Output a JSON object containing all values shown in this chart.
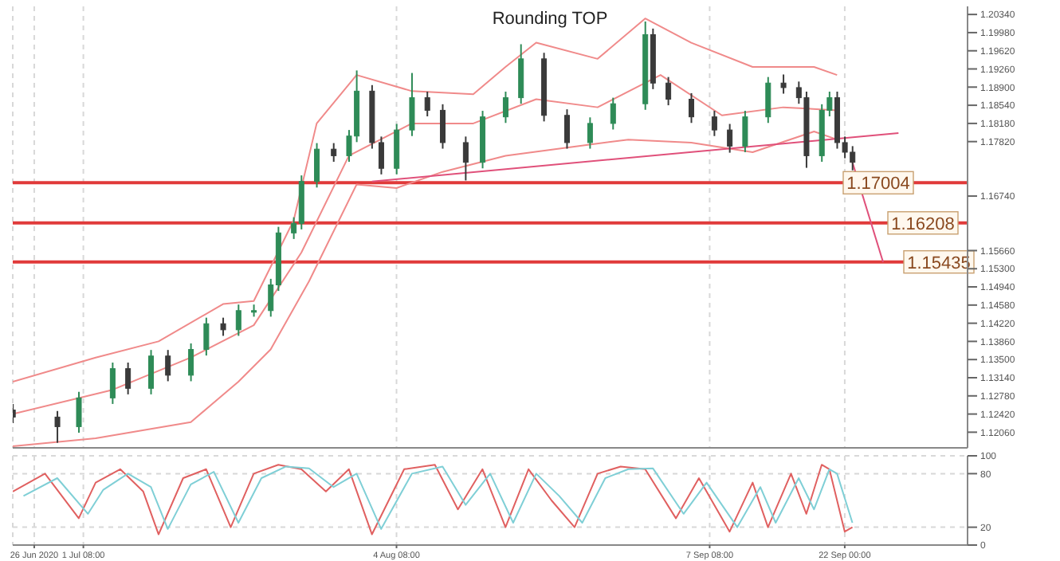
{
  "chart_data": [
    {
      "type": "candlestick",
      "title": "Rounding TOP",
      "x": [
        "2020-06-23T16:00",
        "2020-06-28T12:00",
        "2020-06-30T20:00",
        "2020-07-04T12:00",
        "2020-07-06T04:00",
        "2020-07-08T16:00",
        "2020-07-10T12:00",
        "2020-07-13T00:00",
        "2020-07-14T16:00",
        "2020-07-16T12:00",
        "2020-07-18T04:00",
        "2020-07-19T20:00",
        "2020-07-21T16:00",
        "2020-07-22T12:00",
        "2020-07-24T04:00",
        "2020-07-25T00:00",
        "2020-07-26T16:00",
        "2020-07-28T12:00",
        "2020-07-30T04:00",
        "2020-07-31T00:00",
        "2020-08-01T16:00",
        "2020-08-02T16:00",
        "2020-08-04T08:00",
        "2020-08-06T00:00",
        "2020-08-07T16:00",
        "2020-08-09T08:00",
        "2020-08-11T20:00",
        "2020-08-13T16:00",
        "2020-08-16T04:00",
        "2020-08-17T20:00",
        "2020-08-20T08:00",
        "2020-08-22T20:00",
        "2020-08-25T08:00",
        "2020-08-27T20:00",
        "2020-08-31T08:00",
        "2020-09-01T04:00",
        "2020-09-02T20:00",
        "2020-09-05T08:00",
        "2020-09-07T20:00",
        "2020-09-09T12:00",
        "2020-09-11T04:00",
        "2020-09-13T16:00",
        "2020-09-15T08:00",
        "2020-09-17T00:00",
        "2020-09-17T20:00",
        "2020-09-19T12:00",
        "2020-09-20T08:00",
        "2020-09-21T04:00",
        "2020-09-22T00:00",
        "2020-09-22T20:00"
      ],
      "ohlc": [
        [
          1.125,
          1.1262,
          1.1224,
          1.1236
        ],
        [
          1.1236,
          1.1248,
          1.1185,
          1.1217
        ],
        [
          1.1217,
          1.1286,
          1.1205,
          1.1274
        ],
        [
          1.1274,
          1.1344,
          1.1262,
          1.1332
        ],
        [
          1.1332,
          1.1344,
          1.1281,
          1.1293
        ],
        [
          1.1293,
          1.1369,
          1.1281,
          1.1357
        ],
        [
          1.1357,
          1.1369,
          1.1307,
          1.1319
        ],
        [
          1.1319,
          1.1382,
          1.1307,
          1.137
        ],
        [
          1.137,
          1.1433,
          1.1358,
          1.1421
        ],
        [
          1.1421,
          1.1433,
          1.1397,
          1.1409
        ],
        [
          1.1409,
          1.1459,
          1.1397,
          1.1447
        ],
        [
          1.1447,
          1.1459,
          1.1435,
          1.1447
        ],
        [
          1.1447,
          1.151,
          1.1435,
          1.1498
        ],
        [
          1.1498,
          1.1613,
          1.1486,
          1.1601
        ],
        [
          1.1601,
          1.1632,
          1.1589,
          1.162
        ],
        [
          1.162,
          1.1715,
          1.1608,
          1.1703
        ],
        [
          1.1703,
          1.1779,
          1.1691,
          1.1767
        ],
        [
          1.1767,
          1.1779,
          1.1742,
          1.1754
        ],
        [
          1.1754,
          1.1805,
          1.1742,
          1.1793
        ],
        [
          1.1793,
          1.1923,
          1.1781,
          1.1882
        ],
        [
          1.1882,
          1.1894,
          1.1768,
          1.178
        ],
        [
          1.178,
          1.1792,
          1.1717,
          1.1729
        ],
        [
          1.1729,
          1.1817,
          1.1717,
          1.1805
        ],
        [
          1.1805,
          1.1918,
          1.1793,
          1.1869
        ],
        [
          1.1869,
          1.1881,
          1.1832,
          1.1844
        ],
        [
          1.1844,
          1.1856,
          1.1768,
          1.178
        ],
        [
          1.178,
          1.1792,
          1.1705,
          1.1741
        ],
        [
          1.1741,
          1.1843,
          1.1729,
          1.1831
        ],
        [
          1.1831,
          1.1881,
          1.1819,
          1.1869
        ],
        [
          1.1869,
          1.1975,
          1.1857,
          1.1946
        ],
        [
          1.1946,
          1.1958,
          1.1822,
          1.1834
        ],
        [
          1.1834,
          1.1846,
          1.1768,
          1.178
        ],
        [
          1.178,
          1.183,
          1.1768,
          1.1818
        ],
        [
          1.1818,
          1.1869,
          1.1806,
          1.1857
        ],
        [
          1.1857,
          1.202,
          1.1845,
          1.1994
        ],
        [
          1.1994,
          1.2006,
          1.1886,
          1.1898
        ],
        [
          1.1898,
          1.191,
          1.1854,
          1.1866
        ],
        [
          1.1866,
          1.1878,
          1.1819,
          1.1831
        ],
        [
          1.1831,
          1.1843,
          1.1793,
          1.1805
        ],
        [
          1.1805,
          1.1817,
          1.176,
          1.1773
        ],
        [
          1.1773,
          1.1843,
          1.1761,
          1.1831
        ],
        [
          1.1831,
          1.191,
          1.1819,
          1.1898
        ],
        [
          1.1898,
          1.1915,
          1.1877,
          1.1889
        ],
        [
          1.1889,
          1.1901,
          1.1857,
          1.1869
        ],
        [
          1.1869,
          1.1881,
          1.173,
          1.1754
        ],
        [
          1.1754,
          1.1856,
          1.1742,
          1.1844
        ],
        [
          1.1844,
          1.1881,
          1.1832,
          1.1869
        ],
        [
          1.1869,
          1.1881,
          1.1768,
          1.178
        ],
        [
          1.178,
          1.1792,
          1.1749,
          1.1761
        ],
        [
          1.1761,
          1.1773,
          1.1725,
          1.1741
        ]
      ],
      "colors": [
        "#3a3a3a",
        "#3a3a3a",
        "#2e8b57",
        "#2e8b57",
        "#3a3a3a",
        "#2e8b57",
        "#3a3a3a",
        "#2e8b57",
        "#2e8b57",
        "#3a3a3a",
        "#2e8b57",
        "#2e8b57",
        "#2e8b57",
        "#2e8b57",
        "#2e8b57",
        "#2e8b57",
        "#2e8b57",
        "#3a3a3a",
        "#2e8b57",
        "#2e8b57",
        "#3a3a3a",
        "#3a3a3a",
        "#2e8b57",
        "#2e8b57",
        "#3a3a3a",
        "#3a3a3a",
        "#3a3a3a",
        "#2e8b57",
        "#2e8b57",
        "#2e8b57",
        "#3a3a3a",
        "#3a3a3a",
        "#2e8b57",
        "#2e8b57",
        "#2e8b57",
        "#3a3a3a",
        "#3a3a3a",
        "#3a3a3a",
        "#3a3a3a",
        "#3a3a3a",
        "#2e8b57",
        "#2e8b57",
        "#3a3a3a",
        "#3a3a3a",
        "#3a3a3a",
        "#2e8b57",
        "#2e8b57",
        "#3a3a3a",
        "#3a3a3a",
        "#3a3a3a"
      ],
      "series": [
        {
          "type": "line",
          "color": "#f08a8a",
          "x": [
            "2020-06-23T16:00",
            "2020-07-02T16:00",
            "2020-07-09T12:00",
            "2020-07-16T12:00",
            "2020-07-19T20:00",
            "2020-07-24T04:00",
            "2020-07-26T16:00",
            "2020-07-31T00:00",
            "2020-08-06T00:00",
            "2020-08-12T16:00",
            "2020-08-16T04:00",
            "2020-08-19T12:00",
            "2020-08-26T04:00",
            "2020-08-31T08:00",
            "2020-09-05T08:00",
            "2020-09-12T00:00",
            "2020-09-18T16:00",
            "2020-09-21T04:00"
          ],
          "values": [
            1.1306,
            1.1354,
            1.1386,
            1.146,
            1.1466,
            1.1626,
            1.1818,
            1.1914,
            1.1882,
            1.1876,
            1.193,
            1.1978,
            1.1946,
            1.2026,
            1.1978,
            1.193,
            1.193,
            1.1914
          ]
        },
        {
          "type": "line",
          "color": "#f08a8a",
          "x": [
            "2020-06-23T16:00",
            "2020-07-04T12:00",
            "2020-07-13T00:00",
            "2020-07-19T20:00",
            "2020-07-25T00:00",
            "2020-07-30T04:00",
            "2020-08-06T00:00",
            "2020-08-12T16:00",
            "2020-08-19T12:00",
            "2020-08-26T04:00",
            "2020-09-02T00:00",
            "2020-09-08T16:00",
            "2020-09-15T08:00",
            "2020-09-21T04:00"
          ],
          "values": [
            1.1242,
            1.129,
            1.1354,
            1.1418,
            1.1562,
            1.1754,
            1.1818,
            1.1818,
            1.1866,
            1.185,
            1.1914,
            1.1834,
            1.185,
            1.1844
          ]
        },
        {
          "type": "line",
          "color": "#f08a8a",
          "x": [
            "2020-06-23T16:00",
            "2020-07-02T16:00",
            "2020-07-13T00:00",
            "2020-07-18T04:00",
            "2020-07-21T16:00",
            "2020-07-25T20:00",
            "2020-07-31T00:00",
            "2020-08-04T08:00",
            "2020-08-09T08:00",
            "2020-08-16T04:00",
            "2020-08-22T20:00",
            "2020-08-29T12:00",
            "2020-09-05T08:00",
            "2020-09-12T00:00",
            "2020-09-18T16:00",
            "2020-09-21T04:00"
          ],
          "values": [
            1.1178,
            1.1194,
            1.1226,
            1.1306,
            1.137,
            1.1505,
            1.1697,
            1.169,
            1.1722,
            1.1754,
            1.177,
            1.1786,
            1.178,
            1.1761,
            1.1802,
            1.1786
          ]
        },
        {
          "type": "line",
          "color": "#e0507a",
          "x": [
            "2020-08-01T16:00",
            "2020-09-27T20:00"
          ],
          "values": [
            1.1703,
            1.1799
          ]
        },
        {
          "type": "line",
          "color": "#e0507a",
          "x": [
            "2020-09-22T20:00",
            "2020-09-26T04:00"
          ],
          "values": [
            1.1741,
            1.1543
          ]
        }
      ],
      "xlim": [
        "2020-06-23T16:00",
        "2020-10-05T08:00"
      ],
      "xticks": [
        {
          "value": "2020-06-26",
          "label": null
        },
        {
          "value": "2020-07-01T08:00",
          "label": null
        },
        {
          "value": "2020-08-04T08:00",
          "label": null
        },
        {
          "value": "2020-09-07T08:00",
          "label": null
        },
        {
          "value": "2020-09-22T00:00",
          "label": null
        }
      ],
      "ylim": [
        1.1175,
        1.205
      ],
      "yticks": [
        {
          "value": 1.2034,
          "label": "1.20340"
        },
        {
          "value": 1.1998,
          "label": "1.19980"
        },
        {
          "value": 1.1962,
          "label": "1.19620"
        },
        {
          "value": 1.1926,
          "label": "1.19260"
        },
        {
          "value": 1.189,
          "label": "1.18900"
        },
        {
          "value": 1.1854,
          "label": "1.18540"
        },
        {
          "value": 1.1818,
          "label": "1.18180"
        },
        {
          "value": 1.1782,
          "label": "1.17820"
        },
        {
          "value": 1.1674,
          "label": "1.16740"
        },
        {
          "value": 1.1566,
          "label": "1.15660"
        },
        {
          "value": 1.153,
          "label": "1.15300"
        },
        {
          "value": 1.1494,
          "label": "1.14940"
        },
        {
          "value": 1.1458,
          "label": "1.14580"
        },
        {
          "value": 1.1422,
          "label": "1.14220"
        },
        {
          "value": 1.1386,
          "label": "1.13860"
        },
        {
          "value": 1.135,
          "label": "1.13500"
        },
        {
          "value": 1.1314,
          "label": "1.13140"
        },
        {
          "value": 1.1278,
          "label": "1.12780"
        },
        {
          "value": 1.1242,
          "label": "1.12420"
        },
        {
          "value": 1.1206,
          "label": "1.12060"
        }
      ],
      "ref_lines": [
        {
          "axis": "y",
          "value": 1.17004,
          "label": "1.17004",
          "color": "#e03a3a"
        },
        {
          "axis": "y",
          "value": 1.16208,
          "label": "1.16208",
          "color": "#e03a3a"
        },
        {
          "axis": "y",
          "value": 1.15435,
          "label": "1.15435",
          "color": "#e03a3a"
        }
      ],
      "grid": "x",
      "tick_labels": "y"
    },
    {
      "type": "line",
      "series": [
        {
          "color": "#e06060",
          "x": [
            "2020-06-23T16:00",
            "2020-06-27T04:00",
            "2020-06-30T20:00",
            "2020-07-02T16:00",
            "2020-07-05T08:00",
            "2020-07-07T20:00",
            "2020-07-09T12:00",
            "2020-07-12T04:00",
            "2020-07-14T16:00",
            "2020-07-17T08:00",
            "2020-07-19T20:00",
            "2020-07-22T12:00",
            "2020-07-25T00:00",
            "2020-07-27T16:00",
            "2020-07-30T04:00",
            "2020-08-01T16:00",
            "2020-08-05T04:00",
            "2020-08-08T12:00",
            "2020-08-11T00:00",
            "2020-08-13T16:00",
            "2020-08-16T04:00",
            "2020-08-18T16:00",
            "2020-08-21T04:00",
            "2020-08-23T16:00",
            "2020-08-26T04:00",
            "2020-08-28T16:00",
            "2020-08-31T08:00",
            "2020-09-03T16:00",
            "2020-09-06T04:00",
            "2020-09-09T12:00",
            "2020-09-12T00:00",
            "2020-09-13T16:00",
            "2020-09-16T04:00",
            "2020-09-17T20:00",
            "2020-09-19T12:00",
            "2020-09-20T08:00",
            "2020-09-22T00:00",
            "2020-09-22T20:00"
          ],
          "values": [
            60,
            80,
            30,
            70,
            85,
            60,
            12,
            75,
            85,
            20,
            80,
            90,
            85,
            60,
            85,
            12,
            85,
            90,
            40,
            85,
            20,
            85,
            50,
            20,
            80,
            88,
            85,
            30,
            75,
            15,
            70,
            20,
            80,
            35,
            90,
            85,
            15,
            20
          ]
        },
        {
          "color": "#7fcfd6",
          "x": [
            "2020-06-24T20:00",
            "2020-06-28T12:00",
            "2020-07-01T20:00",
            "2020-07-03T12:00",
            "2020-07-06T04:00",
            "2020-07-08T16:00",
            "2020-07-10T12:00",
            "2020-07-13T00:00",
            "2020-07-15T12:00",
            "2020-07-18T04:00",
            "2020-07-20T16:00",
            "2020-07-23T08:00",
            "2020-07-25T20:00",
            "2020-07-28T12:00",
            "2020-07-31T00:00",
            "2020-08-02T16:00",
            "2020-08-06T00:00",
            "2020-08-09T08:00",
            "2020-08-11T20:00",
            "2020-08-14T12:00",
            "2020-08-17T00:00",
            "2020-08-19T12:00",
            "2020-08-22T00:00",
            "2020-08-24T12:00",
            "2020-08-27T00:00",
            "2020-08-29T12:00",
            "2020-09-01T04:00",
            "2020-09-04T12:00",
            "2020-09-07T00:00",
            "2020-09-10T08:00",
            "2020-09-12T20:00",
            "2020-09-14T12:00",
            "2020-09-17T00:00",
            "2020-09-18T16:00",
            "2020-09-20T08:00",
            "2020-09-21T04:00",
            "2020-09-22T20:00"
          ],
          "values": [
            55,
            75,
            35,
            62,
            80,
            65,
            18,
            68,
            82,
            25,
            75,
            88,
            86,
            65,
            80,
            18,
            80,
            88,
            45,
            80,
            25,
            80,
            55,
            25,
            75,
            85,
            86,
            35,
            70,
            20,
            65,
            25,
            75,
            40,
            85,
            80,
            25
          ]
        }
      ],
      "xlim": [
        "2020-06-23T16:00",
        "2020-10-05T08:00"
      ],
      "xticks": [
        {
          "value": "2020-06-26",
          "label": "26 Jun 2020"
        },
        {
          "value": "2020-07-01T08:00",
          "label": "1 Jul 08:00"
        },
        {
          "value": "2020-08-04T08:00",
          "label": "4 Aug 08:00"
        },
        {
          "value": "2020-09-07T08:00",
          "label": "7 Sep 08:00"
        },
        {
          "value": "2020-09-22T00:00",
          "label": "22 Sep 00:00"
        }
      ],
      "ylim": [
        0,
        100
      ],
      "yticks": [
        0,
        20,
        80,
        100
      ],
      "grid": true
    }
  ]
}
